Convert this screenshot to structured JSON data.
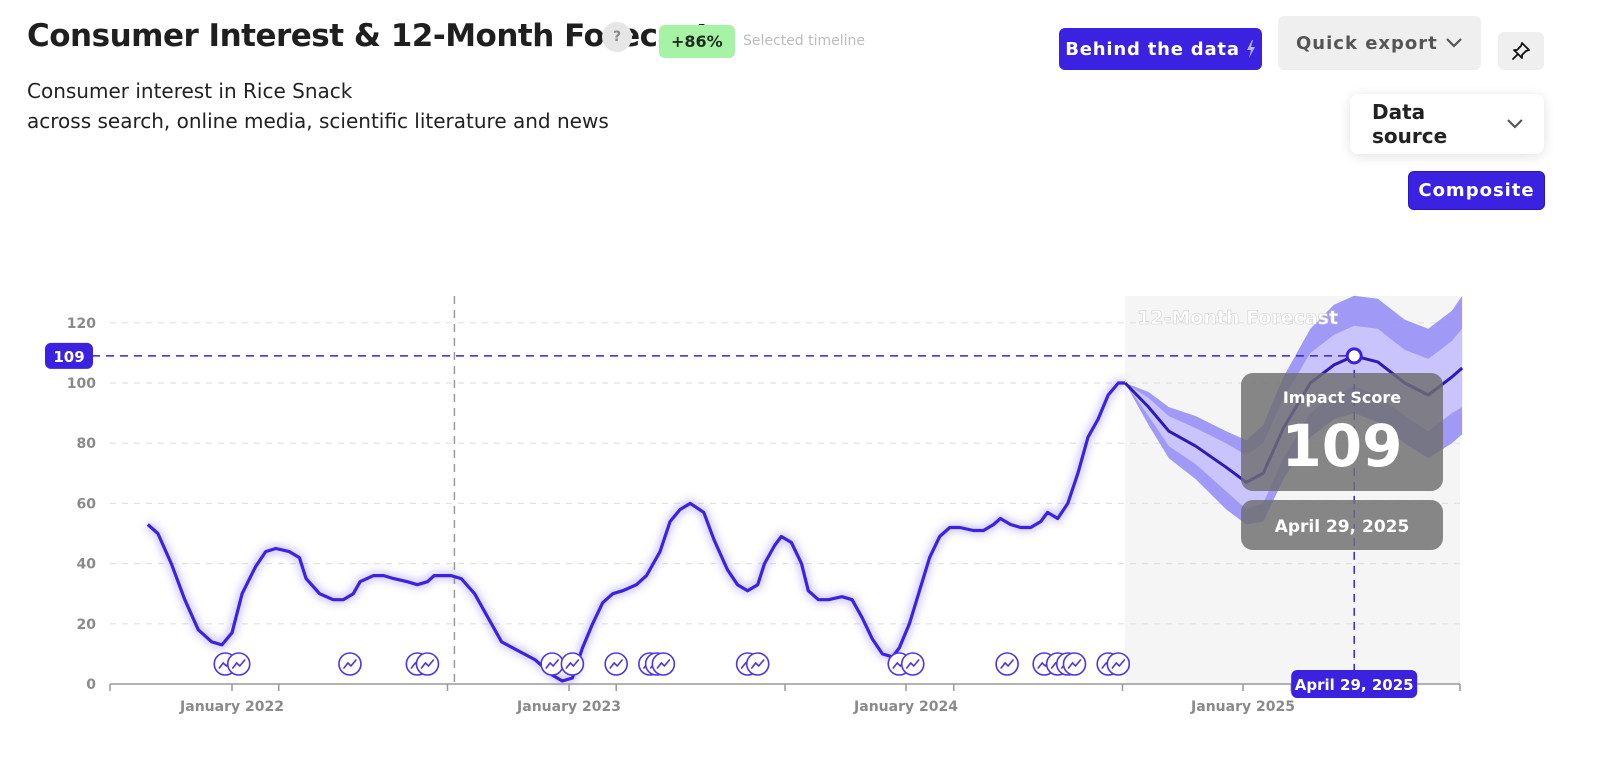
{
  "header": {
    "title": "Consumer Interest & 12-Month Forecast",
    "help_glyph": "?",
    "change_badge": "+86%",
    "timeline_label": "Selected timeline",
    "subtitle_line1": "Consumer interest in Rice Snack",
    "subtitle_line2": "across search, online media, scientific literature and news"
  },
  "toolbar": {
    "behind_label": "Behind the data",
    "export_label": "Quick export",
    "pin_icon": "pin-icon",
    "data_source_label": "Data source",
    "composite_label": "Composite"
  },
  "colors": {
    "accent": "#3b22e0",
    "badge": "#a7f3a6",
    "forecast_band_outer": "#9b93f5",
    "forecast_band_inner": "#c9c4fb"
  },
  "chart_data": {
    "type": "line",
    "ylim": [
      0,
      130
    ],
    "yticks": [
      0,
      20,
      40,
      60,
      80,
      100,
      120
    ],
    "xticks": [
      "January 2022",
      "January 2023",
      "January 2024",
      "January 2025"
    ],
    "grid": true,
    "forecast_label": "12-Month Forecast",
    "series": [
      {
        "values": [
          [
            2021.75,
            53
          ],
          [
            2021.78,
            50
          ],
          [
            2021.82,
            40
          ],
          [
            2021.86,
            28
          ],
          [
            2021.9,
            18
          ],
          [
            2021.94,
            14
          ],
          [
            2021.97,
            13
          ],
          [
            2022.0,
            17
          ],
          [
            2022.03,
            30
          ],
          [
            2022.07,
            39
          ],
          [
            2022.1,
            44
          ],
          [
            2022.13,
            45
          ],
          [
            2022.17,
            44
          ],
          [
            2022.2,
            42
          ],
          [
            2022.22,
            35
          ],
          [
            2022.26,
            30
          ],
          [
            2022.3,
            28
          ],
          [
            2022.33,
            28
          ],
          [
            2022.36,
            30
          ],
          [
            2022.38,
            34
          ],
          [
            2022.42,
            36
          ],
          [
            2022.45,
            36
          ],
          [
            2022.48,
            35
          ],
          [
            2022.52,
            34
          ],
          [
            2022.55,
            33
          ],
          [
            2022.58,
            34
          ],
          [
            2022.6,
            36
          ],
          [
            2022.65,
            36
          ],
          [
            2022.68,
            35
          ],
          [
            2022.72,
            30
          ],
          [
            2022.76,
            22
          ],
          [
            2022.8,
            14
          ],
          [
            2022.85,
            11
          ],
          [
            2022.9,
            8
          ],
          [
            2022.95,
            3
          ],
          [
            2022.98,
            1
          ],
          [
            2023.01,
            2
          ],
          [
            2023.04,
            12
          ],
          [
            2023.07,
            20
          ],
          [
            2023.1,
            27
          ],
          [
            2023.13,
            30
          ],
          [
            2023.16,
            31
          ],
          [
            2023.2,
            33
          ],
          [
            2023.23,
            36
          ],
          [
            2023.27,
            44
          ],
          [
            2023.3,
            54
          ],
          [
            2023.33,
            58
          ],
          [
            2023.36,
            60
          ],
          [
            2023.4,
            57
          ],
          [
            2023.43,
            48
          ],
          [
            2023.47,
            38
          ],
          [
            2023.5,
            33
          ],
          [
            2023.53,
            31
          ],
          [
            2023.56,
            33
          ],
          [
            2023.58,
            40
          ],
          [
            2023.61,
            46
          ],
          [
            2023.63,
            49
          ],
          [
            2023.66,
            47
          ],
          [
            2023.69,
            40
          ],
          [
            2023.71,
            31
          ],
          [
            2023.74,
            28
          ],
          [
            2023.77,
            28
          ],
          [
            2023.81,
            29
          ],
          [
            2023.84,
            28
          ],
          [
            2023.87,
            22
          ],
          [
            2023.9,
            15
          ],
          [
            2023.93,
            10
          ],
          [
            2023.96,
            9
          ],
          [
            2023.98,
            12
          ],
          [
            2024.01,
            20
          ],
          [
            2024.04,
            31
          ],
          [
            2024.07,
            42
          ],
          [
            2024.1,
            49
          ],
          [
            2024.13,
            52
          ],
          [
            2024.16,
            52
          ],
          [
            2024.2,
            51
          ],
          [
            2024.23,
            51
          ],
          [
            2024.26,
            53
          ],
          [
            2024.28,
            55
          ],
          [
            2024.31,
            53
          ],
          [
            2024.34,
            52
          ],
          [
            2024.37,
            52
          ],
          [
            2024.4,
            54
          ],
          [
            2024.42,
            57
          ],
          [
            2024.45,
            55
          ],
          [
            2024.48,
            60
          ],
          [
            2024.51,
            70
          ],
          [
            2024.54,
            82
          ],
          [
            2024.57,
            88
          ],
          [
            2024.6,
            96
          ],
          [
            2024.63,
            100
          ],
          [
            2024.65,
            100
          ]
        ]
      },
      {
        "name": "12-Month Forecast",
        "values": [
          [
            2024.65,
            100
          ],
          [
            2024.72,
            92
          ],
          [
            2024.78,
            84
          ],
          [
            2024.86,
            79
          ],
          [
            2024.95,
            72
          ],
          [
            2025.01,
            67
          ],
          [
            2025.06,
            70
          ],
          [
            2025.12,
            85
          ],
          [
            2025.2,
            100
          ],
          [
            2025.27,
            106
          ],
          [
            2025.33,
            109
          ],
          [
            2025.4,
            107
          ],
          [
            2025.48,
            100
          ],
          [
            2025.55,
            96
          ],
          [
            2025.62,
            102
          ],
          [
            2025.65,
            105
          ]
        ],
        "upper_inner": [
          [
            2024.65,
            100
          ],
          [
            2024.72,
            95
          ],
          [
            2024.78,
            89
          ],
          [
            2024.86,
            85
          ],
          [
            2024.95,
            80
          ],
          [
            2025.01,
            76
          ],
          [
            2025.06,
            80
          ],
          [
            2025.12,
            95
          ],
          [
            2025.2,
            110
          ],
          [
            2025.27,
            116
          ],
          [
            2025.33,
            119
          ],
          [
            2025.4,
            118
          ],
          [
            2025.48,
            111
          ],
          [
            2025.55,
            108
          ],
          [
            2025.62,
            114
          ],
          [
            2025.65,
            118
          ]
        ],
        "lower_inner": [
          [
            2024.65,
            100
          ],
          [
            2024.72,
            89
          ],
          [
            2024.78,
            79
          ],
          [
            2024.86,
            73
          ],
          [
            2024.95,
            64
          ],
          [
            2025.01,
            58
          ],
          [
            2025.06,
            60
          ],
          [
            2025.12,
            75
          ],
          [
            2025.2,
            90
          ],
          [
            2025.27,
            96
          ],
          [
            2025.33,
            99
          ],
          [
            2025.4,
            96
          ],
          [
            2025.48,
            89
          ],
          [
            2025.55,
            84
          ],
          [
            2025.62,
            90
          ],
          [
            2025.65,
            92
          ]
        ],
        "upper_outer": [
          [
            2024.65,
            100
          ],
          [
            2024.72,
            97
          ],
          [
            2024.78,
            92
          ],
          [
            2024.86,
            89
          ],
          [
            2024.95,
            84
          ],
          [
            2025.01,
            81
          ],
          [
            2025.06,
            86
          ],
          [
            2025.12,
            102
          ],
          [
            2025.2,
            118
          ],
          [
            2025.27,
            126
          ],
          [
            2025.33,
            129
          ],
          [
            2025.4,
            128
          ],
          [
            2025.48,
            121
          ],
          [
            2025.55,
            118
          ],
          [
            2025.62,
            124
          ],
          [
            2025.65,
            129
          ]
        ],
        "lower_outer": [
          [
            2024.65,
            100
          ],
          [
            2024.72,
            86
          ],
          [
            2024.78,
            75
          ],
          [
            2024.86,
            68
          ],
          [
            2024.95,
            58
          ],
          [
            2025.01,
            53
          ],
          [
            2025.06,
            54
          ],
          [
            2025.12,
            68
          ],
          [
            2025.2,
            82
          ],
          [
            2025.27,
            88
          ],
          [
            2025.33,
            90
          ],
          [
            2025.4,
            87
          ],
          [
            2025.48,
            80
          ],
          [
            2025.55,
            75
          ],
          [
            2025.62,
            80
          ],
          [
            2025.65,
            83
          ]
        ]
      }
    ],
    "event_markers": [
      2021.98,
      2022.02,
      2022.35,
      2022.55,
      2022.58,
      2022.95,
      2023.01,
      2023.14,
      2023.24,
      2023.26,
      2023.28,
      2023.53,
      2023.56,
      2023.98,
      2024.02,
      2024.3,
      2024.41,
      2024.45,
      2024.48,
      2024.5,
      2024.6,
      2024.63
    ],
    "selected_timeline_start": 2022.66,
    "forecast_start": 2024.65,
    "forecast_end": 2025.65,
    "selected": {
      "date": "April 29, 2025",
      "x": 2025.33,
      "value": 109,
      "value_label": "109",
      "tooltip_title": "Impact Score"
    }
  }
}
